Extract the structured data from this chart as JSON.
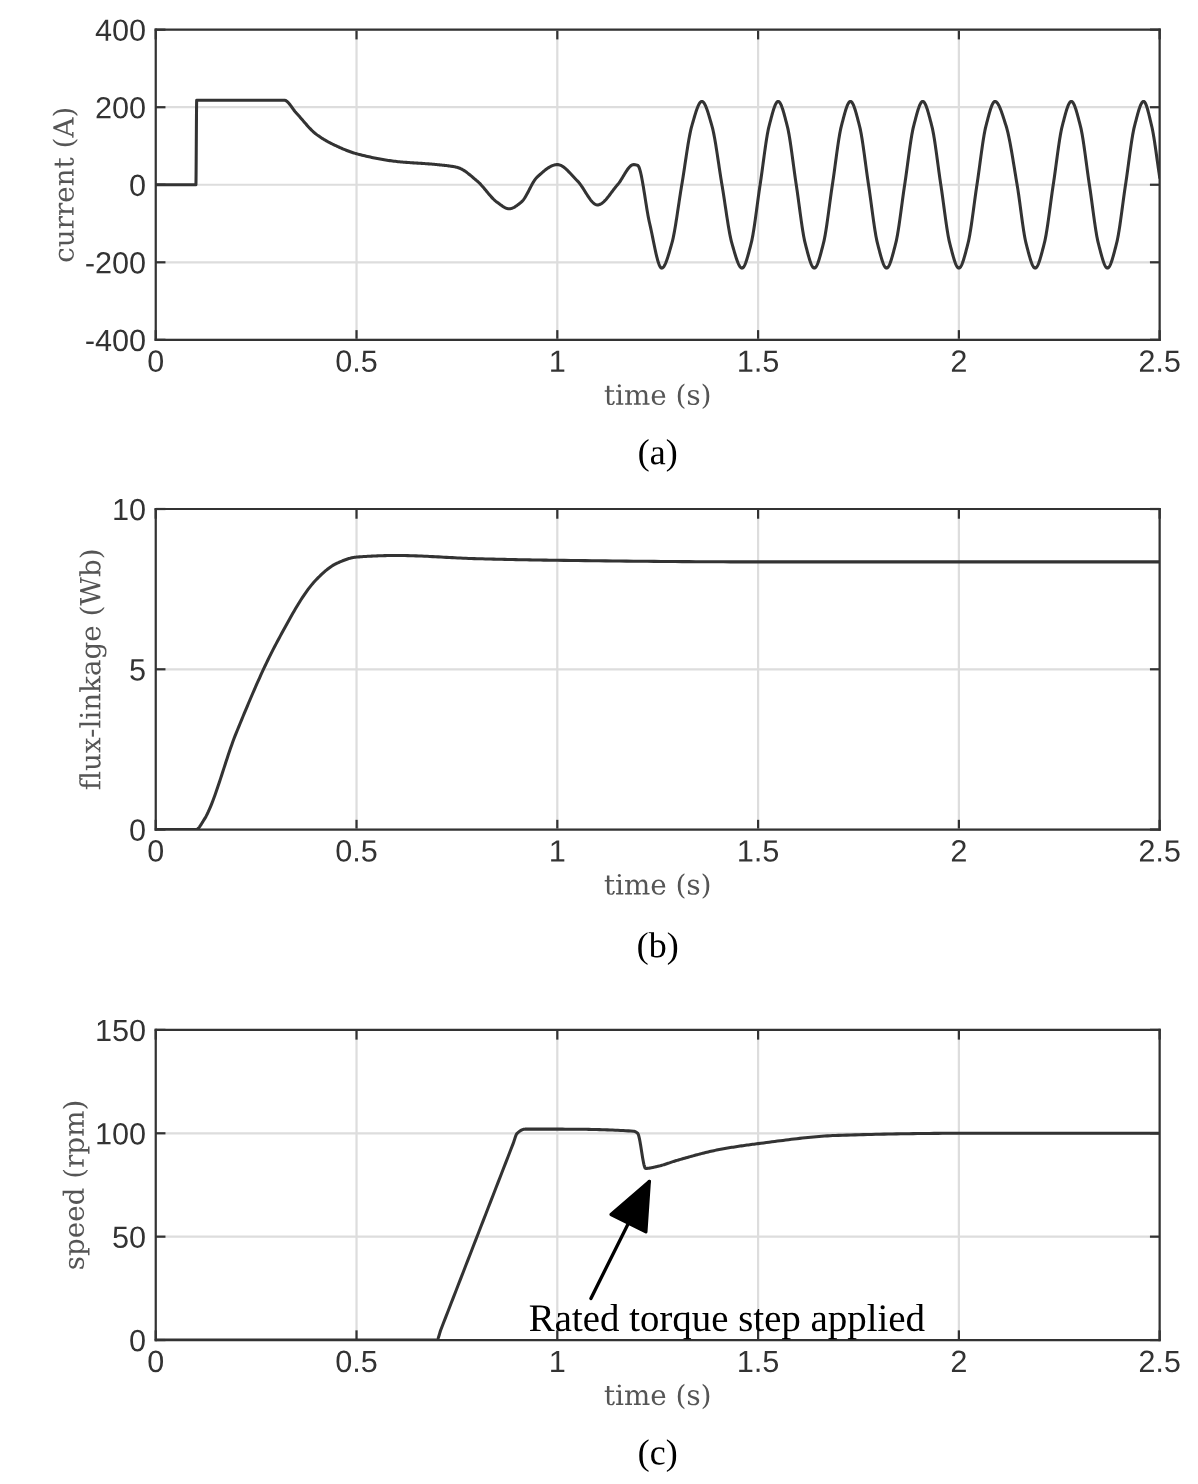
{
  "chart_data": [
    {
      "type": "line",
      "xlabel": "time (s)",
      "ylabel": "current (A)",
      "annotations": [
        "(a)"
      ],
      "color": "#333333",
      "grid": true,
      "xlim": [
        0,
        2.5
      ],
      "xticks": [
        0,
        0.5,
        1,
        1.5,
        2,
        2.5
      ],
      "ylim": [
        -400,
        400
      ],
      "yticks": [
        -400,
        -200,
        0,
        200,
        400
      ],
      "x": [
        0,
        0.1,
        0.102,
        0.32,
        0.35,
        0.4,
        0.45,
        0.5,
        0.6,
        0.7,
        0.75,
        0.8,
        0.85,
        0.88,
        0.91,
        0.95,
        1.0,
        1.05,
        1.1,
        1.15,
        1.19,
        1.2,
        1.23,
        1.26,
        1.285,
        1.31,
        1.335,
        1.36,
        1.385,
        1.41,
        1.435,
        1.46,
        1.4825,
        1.505,
        1.5275,
        1.55,
        1.5725,
        1.595,
        1.6175,
        1.64,
        1.6625,
        1.685,
        1.7075,
        1.73,
        1.7525,
        1.775,
        1.7975,
        1.82,
        1.8425,
        1.865,
        1.8875,
        1.91,
        1.9325,
        1.955,
        1.9775,
        2.0,
        2.0225,
        2.045,
        2.0675,
        2.09,
        2.1175,
        2.145,
        2.1675,
        2.19,
        2.2125,
        2.235,
        2.2575,
        2.28,
        2.3025,
        2.325,
        2.3475,
        2.37,
        2.3925,
        2.415,
        2.4375,
        2.46,
        2.48,
        2.5
      ],
      "values": [
        0,
        0,
        218,
        218,
        185,
        130,
        100,
        80,
        60,
        52,
        45,
        10,
        -45,
        -62,
        -45,
        20,
        52,
        10,
        -52,
        0,
        52,
        50,
        -100,
        -215,
        -152,
        0,
        152,
        215,
        152,
        0,
        -152,
        -215,
        -152,
        0,
        152,
        215,
        152,
        0,
        -152,
        -215,
        -152,
        0,
        152,
        215,
        152,
        0,
        -152,
        -215,
        -152,
        0,
        152,
        215,
        152,
        0,
        -152,
        -215,
        -152,
        0,
        152,
        215,
        152,
        0,
        -152,
        -215,
        -152,
        0,
        152,
        215,
        152,
        0,
        -152,
        -215,
        -152,
        0,
        152,
        215,
        152,
        20
      ]
    },
    {
      "type": "line",
      "xlabel": "time (s)",
      "ylabel": "flux-linkage (Wb)",
      "annotations": [
        "(b)"
      ],
      "color": "#333333",
      "grid": true,
      "xlim": [
        0,
        2.5
      ],
      "xticks": [
        0,
        0.5,
        1,
        1.5,
        2,
        2.5
      ],
      "ylim": [
        0,
        10
      ],
      "yticks": [
        0,
        5,
        10
      ],
      "x": [
        0,
        0.1,
        0.12,
        0.2,
        0.3,
        0.4,
        0.45,
        0.5,
        0.6,
        0.8,
        1.0,
        1.5,
        2.0,
        2.5
      ],
      "values": [
        0,
        0,
        0.3,
        3,
        5.8,
        7.8,
        8.3,
        8.5,
        8.55,
        8.45,
        8.4,
        8.35,
        8.35,
        8.35
      ]
    },
    {
      "type": "line",
      "xlabel": "time (s)",
      "ylabel": "speed (rpm)",
      "annotations": [
        {
          "text": "Rated torque step applied",
          "x": 1.24,
          "y": 81
        },
        "(c)"
      ],
      "color": "#333333",
      "grid": true,
      "xlim": [
        0,
        2.5
      ],
      "xticks": [
        0,
        0.5,
        1,
        1.5,
        2,
        2.5
      ],
      "ylim": [
        0,
        150
      ],
      "yticks": [
        0,
        50,
        100,
        150
      ],
      "x": [
        0,
        0.7,
        0.71,
        0.89,
        0.9,
        0.92,
        1.0,
        1.19,
        1.2,
        1.22,
        1.25,
        1.3,
        1.4,
        1.5,
        1.7,
        2.0,
        2.5
      ],
      "values": [
        0,
        0,
        5,
        95,
        100,
        102,
        102,
        101,
        100,
        83,
        84,
        87,
        92,
        95,
        99,
        100,
        100
      ]
    }
  ]
}
